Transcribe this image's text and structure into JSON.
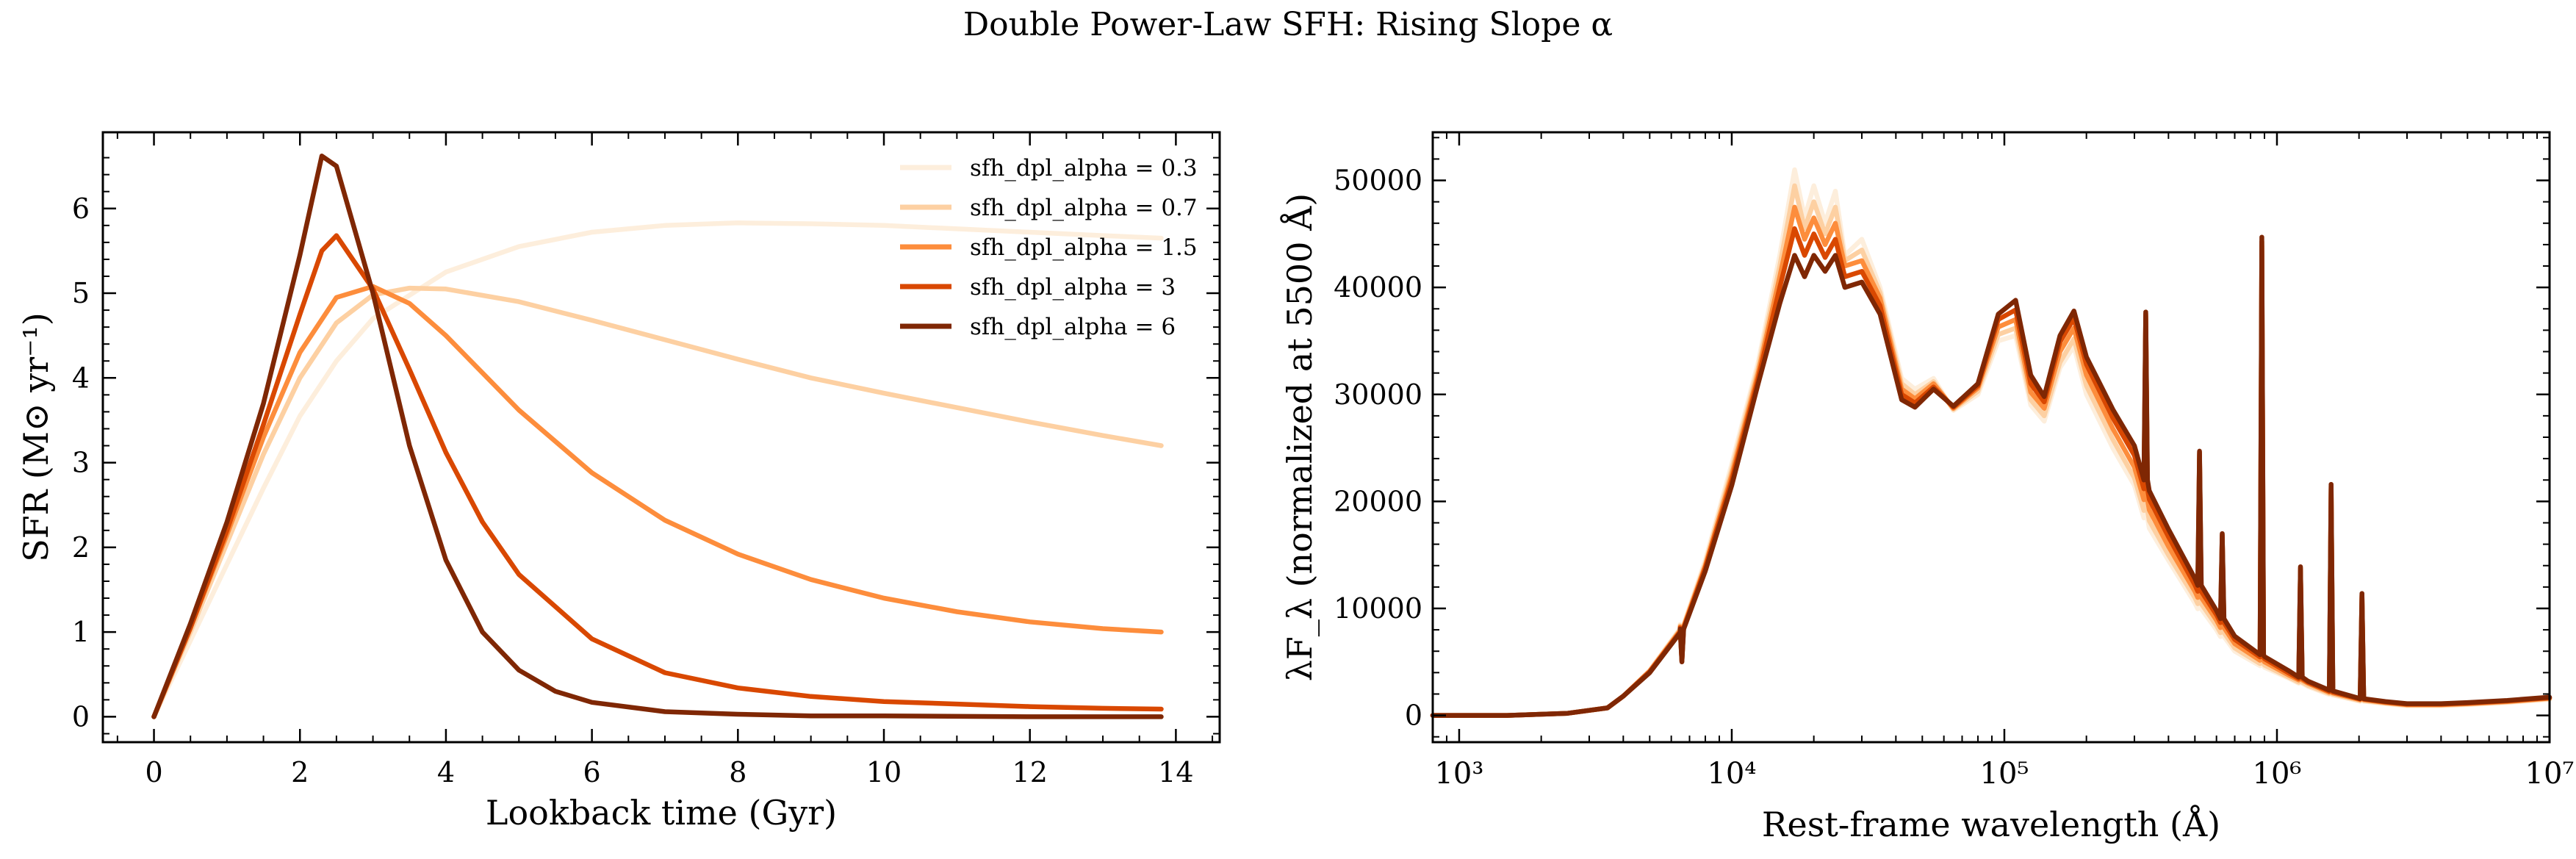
{
  "suptitle": "Double Power-Law SFH: Rising Slope α",
  "chart_data": [
    {
      "type": "line",
      "xlabel": "Lookback time (Gyr)",
      "ylabel": "SFR (M⊙ yr⁻¹)",
      "xlim": [
        -0.7,
        14.6
      ],
      "ylim": [
        -0.3,
        6.9
      ],
      "xticks": [
        0,
        2,
        4,
        6,
        8,
        10,
        12,
        14
      ],
      "yticks": [
        0,
        1,
        2,
        3,
        4,
        5,
        6
      ],
      "legend_position": "top-right",
      "series": [
        {
          "name": "sfh_dpl_alpha = 0.3",
          "color": "#fdeedc",
          "x": [
            0,
            0.5,
            1,
            1.5,
            2,
            2.5,
            3,
            4,
            5,
            6,
            7,
            8,
            9,
            10,
            11,
            12,
            13,
            13.8
          ],
          "y": [
            0,
            0.9,
            1.8,
            2.7,
            3.55,
            4.2,
            4.7,
            5.25,
            5.55,
            5.72,
            5.8,
            5.83,
            5.82,
            5.8,
            5.76,
            5.72,
            5.68,
            5.65
          ]
        },
        {
          "name": "sfh_dpl_alpha = 0.7",
          "color": "#fdd0a2",
          "x": [
            0,
            0.5,
            1,
            1.5,
            2,
            2.5,
            3,
            3.5,
            4,
            5,
            6,
            7,
            8,
            9,
            10,
            11,
            12,
            13,
            13.8
          ],
          "y": [
            0,
            1.0,
            2.05,
            3.1,
            4.0,
            4.65,
            4.98,
            5.06,
            5.05,
            4.9,
            4.68,
            4.45,
            4.22,
            4.0,
            3.82,
            3.65,
            3.48,
            3.32,
            3.2
          ]
        },
        {
          "name": "sfh_dpl_alpha = 1.5",
          "color": "#fd8d3c",
          "x": [
            0,
            0.5,
            1,
            1.5,
            2,
            2.5,
            3,
            3.5,
            4,
            5,
            6,
            7,
            8,
            9,
            10,
            11,
            12,
            13,
            13.8
          ],
          "y": [
            0,
            1.05,
            2.15,
            3.3,
            4.3,
            4.95,
            5.08,
            4.88,
            4.5,
            3.62,
            2.88,
            2.32,
            1.92,
            1.62,
            1.4,
            1.24,
            1.12,
            1.04,
            1.0
          ]
        },
        {
          "name": "sfh_dpl_alpha = 3",
          "color": "#d94801",
          "x": [
            0,
            0.5,
            1,
            1.5,
            2,
            2.3,
            2.5,
            3,
            3.5,
            4,
            4.5,
            5,
            6,
            7,
            8,
            9,
            10,
            11,
            12,
            13,
            13.8
          ],
          "y": [
            0,
            1.05,
            2.2,
            3.45,
            4.75,
            5.5,
            5.68,
            5.05,
            4.1,
            3.12,
            2.3,
            1.68,
            0.92,
            0.52,
            0.34,
            0.24,
            0.18,
            0.15,
            0.12,
            0.1,
            0.09
          ]
        },
        {
          "name": "sfh_dpl_alpha = 6",
          "color": "#7f2704",
          "x": [
            0,
            0.5,
            1,
            1.5,
            2,
            2.3,
            2.5,
            3,
            3.5,
            4,
            4.5,
            5,
            5.5,
            6,
            7,
            8,
            9,
            10,
            12,
            13.8
          ],
          "y": [
            0,
            1.1,
            2.3,
            3.7,
            5.45,
            6.62,
            6.5,
            5.0,
            3.2,
            1.85,
            1.0,
            0.55,
            0.3,
            0.17,
            0.06,
            0.03,
            0.01,
            0.01,
            0.0,
            0.0
          ]
        }
      ]
    },
    {
      "type": "line",
      "xlabel": "Rest-frame wavelength (Å)",
      "ylabel": "λF_λ (normalized at 5500 Å)",
      "x_scale": "log",
      "xlim": [
        800,
        10000000
      ],
      "ylim": [
        -2500,
        54500
      ],
      "xticks": [
        1000,
        10000,
        100000,
        1000000,
        10000000
      ],
      "xtick_labels": [
        "10³",
        "10⁴",
        "10⁵",
        "10⁶",
        "10⁷"
      ],
      "yticks": [
        0,
        10000,
        20000,
        30000,
        40000,
        50000
      ],
      "series": [
        {
          "name": "sfh_dpl_alpha = 0.3",
          "color": "#fdeedc",
          "x": [
            800,
            1500,
            2500,
            3500,
            4000,
            5000,
            6500,
            8000,
            10000,
            12500,
            15000,
            17000,
            18500,
            20000,
            22000,
            24000,
            26000,
            30000,
            35000,
            42000,
            47000,
            55000,
            65000,
            80000,
            95000,
            110000,
            125000,
            140000,
            160000,
            180000,
            200000,
            250000,
            300000,
            340000,
            400000,
            500000,
            600000,
            700000,
            900000,
            1100000,
            1300000,
            1600000,
            2000000,
            2500000,
            3000000,
            4000000,
            5000000,
            7000000,
            10000000
          ],
          "y": [
            0,
            0,
            200,
            700,
            1800,
            4200,
            8200,
            14500,
            23500,
            33000,
            43000,
            51000,
            46500,
            49500,
            46000,
            49000,
            43000,
            44500,
            40000,
            31500,
            30500,
            31500,
            28500,
            30000,
            35000,
            35500,
            29000,
            27500,
            32500,
            34500,
            30000,
            25000,
            21500,
            17500,
            14500,
            10500,
            8000,
            6000,
            4500,
            3500,
            2700,
            1900,
            1350,
            1100,
            900,
            900,
            1000,
            1200,
            1500
          ]
        },
        {
          "name": "sfh_dpl_alpha = 0.7",
          "color": "#fdd0a2",
          "x": [
            800,
            1500,
            2500,
            3500,
            4000,
            5000,
            6500,
            8000,
            10000,
            12500,
            15000,
            17000,
            18500,
            20000,
            22000,
            24000,
            26000,
            30000,
            35000,
            42000,
            47000,
            55000,
            65000,
            80000,
            95000,
            110000,
            125000,
            140000,
            160000,
            180000,
            200000,
            250000,
            300000,
            340000,
            400000,
            500000,
            600000,
            700000,
            900000,
            1100000,
            1300000,
            1600000,
            2000000,
            2500000,
            3000000,
            4000000,
            5000000,
            7000000,
            10000000
          ],
          "y": [
            0,
            0,
            200,
            700,
            1800,
            4200,
            8100,
            14200,
            23000,
            32500,
            42000,
            49500,
            45500,
            48000,
            45000,
            47500,
            42500,
            43500,
            39500,
            31000,
            30000,
            31200,
            28600,
            30300,
            35600,
            36200,
            29500,
            28000,
            33000,
            35200,
            30800,
            25800,
            22200,
            18200,
            15000,
            11000,
            8400,
            6300,
            4700,
            3600,
            2800,
            2000,
            1400,
            1150,
            950,
            950,
            1050,
            1250,
            1550
          ]
        },
        {
          "name": "sfh_dpl_alpha = 1.5",
          "color": "#fd8d3c",
          "x": [
            800,
            1500,
            2500,
            3500,
            4000,
            5000,
            6500,
            8000,
            10000,
            12500,
            15000,
            17000,
            18500,
            20000,
            22000,
            24000,
            26000,
            30000,
            35000,
            42000,
            47000,
            55000,
            65000,
            80000,
            95000,
            110000,
            125000,
            140000,
            160000,
            180000,
            200000,
            250000,
            300000,
            340000,
            400000,
            500000,
            600000,
            700000,
            900000,
            1100000,
            1300000,
            1600000,
            2000000,
            2500000,
            3000000,
            4000000,
            5000000,
            7000000,
            10000000
          ],
          "y": [
            0,
            0,
            200,
            700,
            1800,
            4100,
            8000,
            14000,
            22500,
            32000,
            41000,
            47500,
            44500,
            46500,
            44000,
            46000,
            42000,
            42500,
            39000,
            30500,
            29600,
            31000,
            28700,
            30600,
            36300,
            37000,
            30200,
            28700,
            34000,
            36200,
            31800,
            26800,
            23200,
            19200,
            15800,
            11600,
            8900,
            6700,
            5000,
            3800,
            3000,
            2100,
            1500,
            1200,
            1000,
            1000,
            1100,
            1300,
            1600
          ]
        },
        {
          "name": "sfh_dpl_alpha = 3",
          "color": "#d94801",
          "x": [
            800,
            1500,
            2500,
            3500,
            4000,
            5000,
            6500,
            8000,
            10000,
            12500,
            15000,
            17000,
            18500,
            20000,
            22000,
            24000,
            26000,
            30000,
            35000,
            42000,
            47000,
            55000,
            65000,
            80000,
            95000,
            110000,
            125000,
            140000,
            160000,
            180000,
            200000,
            250000,
            300000,
            340000,
            400000,
            500000,
            600000,
            700000,
            900000,
            1100000,
            1300000,
            1600000,
            2000000,
            2500000,
            3000000,
            4000000,
            5000000,
            7000000,
            10000000
          ],
          "y": [
            0,
            0,
            200,
            700,
            1800,
            4100,
            7900,
            13800,
            22000,
            31500,
            40000,
            45500,
            43000,
            45000,
            42800,
            44500,
            41000,
            41500,
            38300,
            30000,
            29200,
            30700,
            28800,
            30800,
            37000,
            37900,
            31000,
            29300,
            34900,
            37100,
            32800,
            27800,
            24300,
            20200,
            16700,
            12200,
            9400,
            7100,
            5300,
            4000,
            3100,
            2200,
            1550,
            1250,
            1050,
            1050,
            1150,
            1350,
            1650
          ]
        },
        {
          "name": "sfh_dpl_alpha = 6",
          "color": "#7f2704",
          "x": [
            800,
            1500,
            2500,
            3500,
            4000,
            5000,
            6500,
            8000,
            10000,
            12500,
            15000,
            17000,
            18500,
            20000,
            22000,
            24000,
            26000,
            30000,
            35000,
            42000,
            47000,
            55000,
            65000,
            80000,
            95000,
            110000,
            125000,
            140000,
            160000,
            180000,
            200000,
            250000,
            300000,
            340000,
            400000,
            500000,
            600000,
            700000,
            900000,
            1100000,
            1300000,
            1600000,
            2000000,
            2500000,
            3000000,
            4000000,
            5000000,
            7000000,
            10000000
          ],
          "y": [
            0,
            0,
            200,
            700,
            1800,
            4000,
            7800,
            13500,
            21500,
            31000,
            38500,
            43000,
            41000,
            43000,
            41500,
            43000,
            40000,
            40500,
            37500,
            29500,
            28800,
            30500,
            28900,
            31000,
            37500,
            38800,
            31800,
            29800,
            35500,
            37800,
            33500,
            28600,
            25200,
            21000,
            17400,
            12800,
            9800,
            7400,
            5500,
            4200,
            3200,
            2300,
            1600,
            1300,
            1100,
            1100,
            1200,
            1400,
            1700
          ]
        }
      ],
      "emission_lines": [
        {
          "x": 6563,
          "y": 5000
        },
        {
          "x": 330000,
          "y": 37700
        },
        {
          "x": 520000,
          "y": 24700
        },
        {
          "x": 630000,
          "y": 17000
        },
        {
          "x": 880000,
          "y": 44700
        },
        {
          "x": 1220000,
          "y": 13900
        },
        {
          "x": 1580000,
          "y": 21600
        },
        {
          "x": 2050000,
          "y": 11400
        }
      ]
    }
  ]
}
